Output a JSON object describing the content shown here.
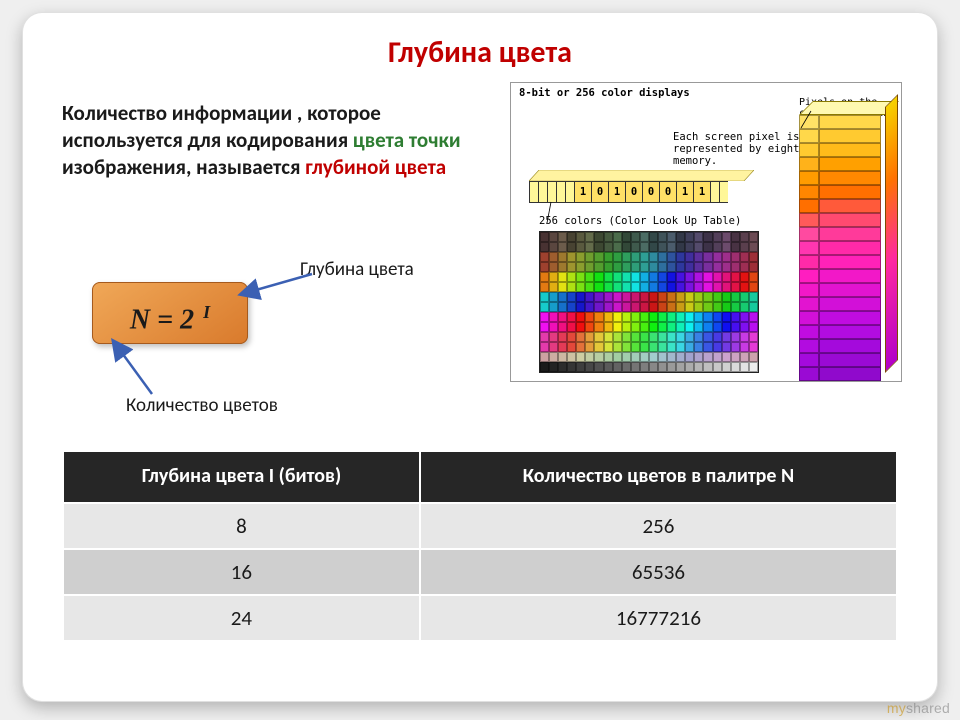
{
  "title": "Глубина цвета",
  "description": {
    "pre": "Количество информации , которое используется для кодирования ",
    "green1": "цвета",
    "mid1": " ",
    "green2": "точки",
    "mid2": " изображения, называется ",
    "red": "глубиной цвета"
  },
  "formula": {
    "text": "N = 2 ",
    "exponent": "I"
  },
  "labels": {
    "depth": "Глубина цвета",
    "colors": "Количество цветов"
  },
  "figure": {
    "title": "8-bit or 256 color displays",
    "pixels_on_screen": "Pixels on the computer screen",
    "each_pixel": "Each screen pixel is represented by eight bits of memory.",
    "bits": [
      "1",
      "0",
      "1",
      "0",
      "0",
      "0",
      "1",
      "1"
    ],
    "clut_label": "256 colors (Color Look Up Table)",
    "clut_cols": 24,
    "clut_rows": 14,
    "big_rows": [
      {
        "a": "#ffe266",
        "b": "#ffd84a"
      },
      {
        "a": "#ffd84a",
        "b": "#ffca30"
      },
      {
        "a": "#ffca30",
        "b": "#ffbb1a"
      },
      {
        "a": "#ffb21a",
        "b": "#ffa000"
      },
      {
        "a": "#ff9c00",
        "b": "#ff8800"
      },
      {
        "a": "#ff8600",
        "b": "#ff6f00"
      },
      {
        "a": "#ff6f00",
        "b": "#ff5a3a"
      },
      {
        "a": "#ff5a5a",
        "b": "#ff4a70"
      },
      {
        "a": "#ff4aa0",
        "b": "#ff3a9a"
      },
      {
        "a": "#ff36b0",
        "b": "#ff2aa8"
      },
      {
        "a": "#ff2aa8",
        "b": "#ff22b8"
      },
      {
        "a": "#ff1ec0",
        "b": "#f218c8"
      },
      {
        "a": "#f218c8",
        "b": "#e214d0"
      },
      {
        "a": "#e214d0",
        "b": "#d210d8"
      },
      {
        "a": "#d210d8",
        "b": "#c00ce0"
      },
      {
        "a": "#c00ce0",
        "b": "#b20ce0"
      },
      {
        "a": "#b20ce0",
        "b": "#a40adc"
      },
      {
        "a": "#a40adc",
        "b": "#9a0ad4"
      },
      {
        "a": "#9a0ad4",
        "b": "#900acc"
      }
    ]
  },
  "table": {
    "headers": [
      "Глубина цвета   I   (битов)",
      "Количество цветов в палитре  N"
    ],
    "rows": [
      [
        "8",
        "256"
      ],
      [
        "16",
        "65536"
      ],
      [
        "24",
        "16777216"
      ]
    ]
  },
  "arrows": {
    "color": "#3b60b3",
    "stroke_width": 2.5
  },
  "colors": {
    "title": "#c00000",
    "text": "#1a1a1a",
    "accent_green": "#2e7d32",
    "accent_red": "#c00000",
    "table_header_bg": "#262626",
    "table_header_fg": "#ffffff",
    "row_odd": "#e7e7e7",
    "row_even": "#cfcfcf",
    "formula_bg_start": "#f0a858",
    "formula_bg_end": "#d97a2c"
  },
  "watermark": {
    "my": "my",
    "rest": "shared"
  }
}
